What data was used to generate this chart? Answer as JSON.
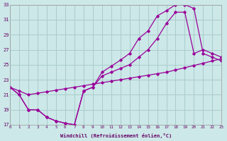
{
  "xlabel": "Windchill (Refroidissement éolien,°C)",
  "bg_color": "#cce8e8",
  "line_color": "#990099",
  "grid_color": "#aacccc",
  "xmin": 0,
  "xmax": 23,
  "ymin": 17,
  "ymax": 33,
  "yticks": [
    17,
    19,
    21,
    23,
    25,
    27,
    29,
    31,
    33
  ],
  "xticks": [
    0,
    1,
    2,
    3,
    4,
    5,
    6,
    7,
    8,
    9,
    10,
    11,
    12,
    13,
    14,
    15,
    16,
    17,
    18,
    19,
    20,
    21,
    22,
    23
  ],
  "line1_x": [
    0,
    1,
    2,
    3,
    4,
    5,
    6,
    7,
    8,
    9,
    10,
    11,
    12,
    13,
    14,
    15,
    16,
    17,
    18,
    19,
    20,
    21,
    22,
    23
  ],
  "line1_y": [
    22.0,
    21.0,
    19.0,
    19.0,
    18.0,
    17.5,
    17.2,
    17.0,
    21.5,
    22.0,
    24.0,
    24.8,
    25.6,
    26.5,
    28.5,
    29.5,
    31.5,
    32.2,
    33.0,
    33.0,
    32.5,
    26.5,
    26.0,
    25.5
  ],
  "line2_x": [
    0,
    1,
    2,
    3,
    4,
    5,
    6,
    7,
    8,
    9,
    10,
    11,
    12,
    13,
    14,
    15,
    16,
    17,
    18,
    19,
    20,
    21,
    22,
    23
  ],
  "line2_y": [
    22.0,
    21.0,
    19.0,
    19.0,
    18.0,
    17.5,
    17.2,
    17.0,
    21.5,
    22.0,
    23.5,
    24.0,
    24.5,
    25.0,
    26.0,
    27.0,
    28.5,
    30.5,
    32.0,
    32.0,
    26.5,
    27.0,
    26.5,
    26.0
  ],
  "line3_x": [
    0,
    1,
    2,
    3,
    4,
    5,
    6,
    7,
    8,
    9,
    10,
    11,
    12,
    13,
    14,
    15,
    16,
    17,
    18,
    19,
    20,
    21,
    22,
    23
  ],
  "line3_y": [
    22.0,
    21.5,
    21.0,
    21.2,
    21.4,
    21.6,
    21.8,
    22.0,
    22.2,
    22.4,
    22.6,
    22.8,
    23.0,
    23.2,
    23.4,
    23.6,
    23.8,
    24.0,
    24.3,
    24.6,
    24.9,
    25.2,
    25.5,
    25.8
  ]
}
